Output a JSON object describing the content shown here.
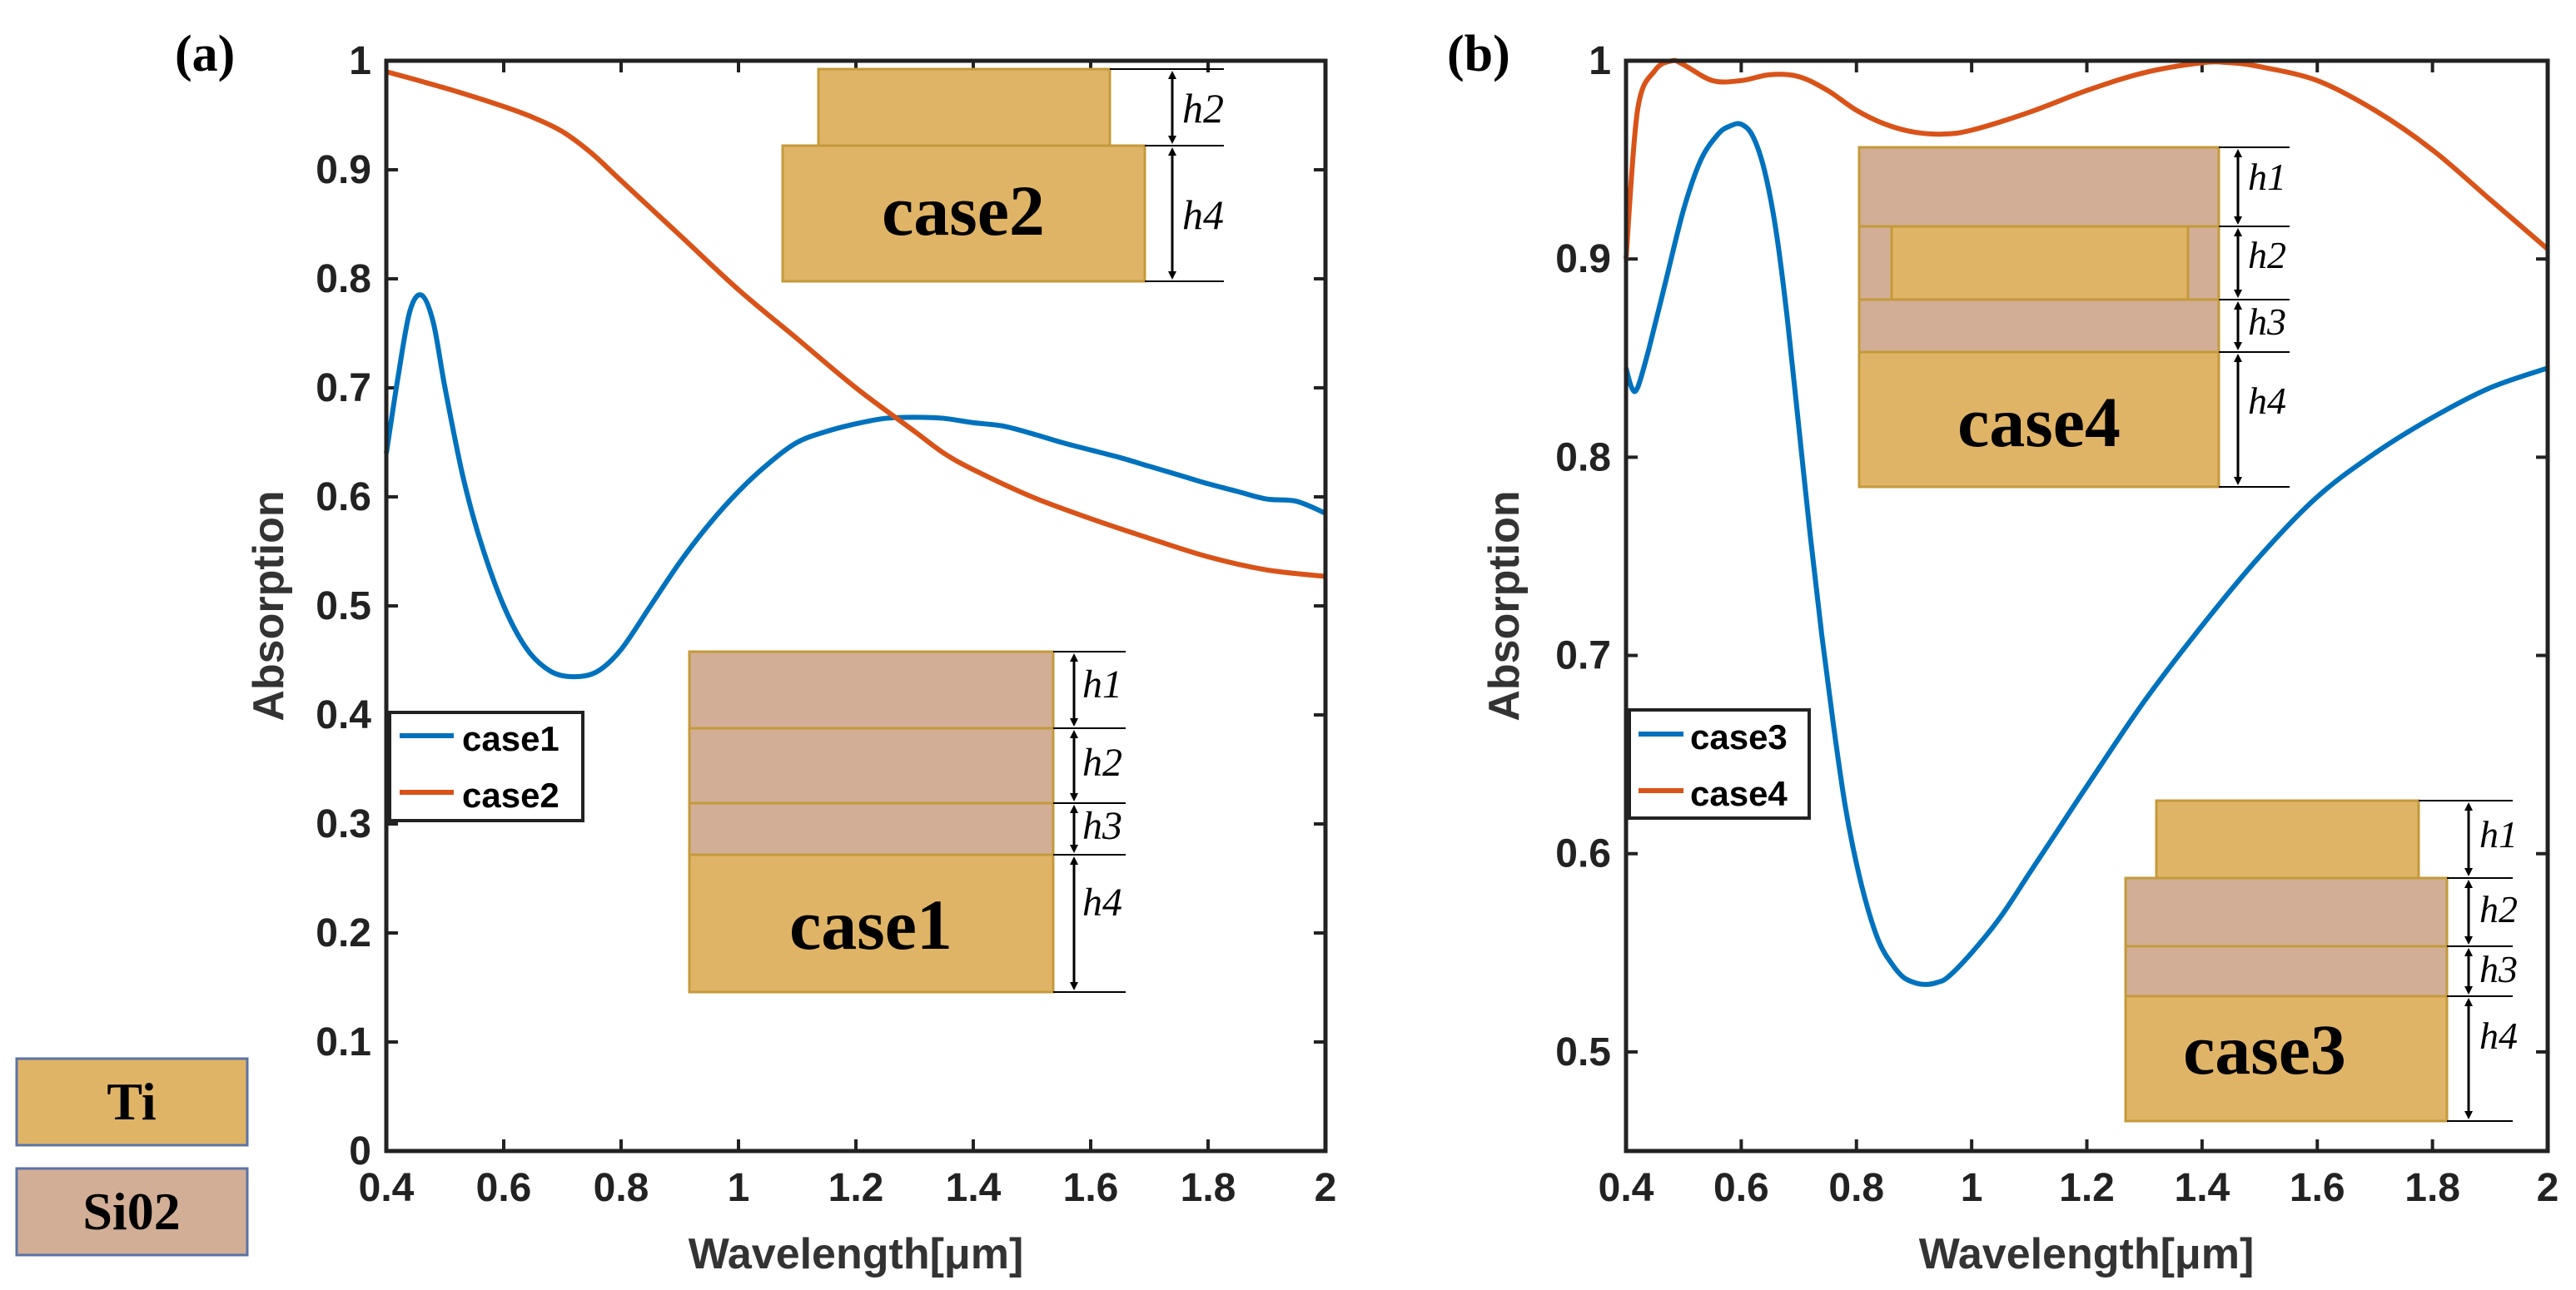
{
  "colors": {
    "case1": "#0072BD",
    "case2": "#D95319",
    "case3": "#0072BD",
    "case4": "#D95319",
    "ti": "#E0B466",
    "sio2": "#D2AE96",
    "layer_border": "#C49A3A",
    "legend_border": "#5A73A8"
  },
  "materials_legend": {
    "ti": "Ti",
    "sio2": "Si02"
  },
  "chart_data": [
    {
      "type": "line",
      "panel_label": "(a)",
      "xlabel": "Wavelength[μm]",
      "ylabel": "Absorption",
      "xlim": [
        0.4,
        2.0
      ],
      "ylim": [
        0,
        1
      ],
      "xticks": [
        0.4,
        0.6,
        0.8,
        1.0,
        1.2,
        1.4,
        1.6,
        1.8,
        2.0
      ],
      "xtick_labels": [
        "0.4",
        "0.6",
        "0.8",
        "1",
        "1.2",
        "1.4",
        "1.6",
        "1.8",
        "2"
      ],
      "yticks": [
        0,
        0.1,
        0.2,
        0.3,
        0.4,
        0.5,
        0.6,
        0.7,
        0.8,
        0.9,
        1.0
      ],
      "ytick_labels": [
        "0",
        "0.1",
        "0.2",
        "0.3",
        "0.4",
        "0.5",
        "0.6",
        "0.7",
        "0.8",
        "0.9",
        "1"
      ],
      "legend_location": "center-left",
      "series": [
        {
          "name": "case1",
          "x": [
            0.4,
            0.42,
            0.44,
            0.46,
            0.48,
            0.5,
            0.53,
            0.56,
            0.6,
            0.64,
            0.68,
            0.72,
            0.76,
            0.8,
            0.85,
            0.9,
            0.95,
            1.0,
            1.05,
            1.1,
            1.15,
            1.2,
            1.25,
            1.3,
            1.35,
            1.4,
            1.45,
            1.5,
            1.55,
            1.6,
            1.65,
            1.7,
            1.75,
            1.8,
            1.85,
            1.9,
            1.95,
            2.0
          ],
          "y": [
            0.64,
            0.71,
            0.77,
            0.785,
            0.76,
            0.7,
            0.62,
            0.56,
            0.5,
            0.46,
            0.44,
            0.435,
            0.44,
            0.46,
            0.5,
            0.54,
            0.575,
            0.605,
            0.63,
            0.65,
            0.66,
            0.667,
            0.672,
            0.673,
            0.672,
            0.668,
            0.665,
            0.658,
            0.65,
            0.643,
            0.636,
            0.628,
            0.62,
            0.612,
            0.605,
            0.598,
            0.596,
            0.585
          ]
        },
        {
          "name": "case2",
          "x": [
            0.4,
            0.5,
            0.6,
            0.65,
            0.7,
            0.75,
            0.8,
            0.9,
            1.0,
            1.1,
            1.2,
            1.3,
            1.35,
            1.4,
            1.5,
            1.6,
            1.7,
            1.8,
            1.9,
            2.0
          ],
          "y": [
            0.99,
            0.975,
            0.958,
            0.948,
            0.935,
            0.915,
            0.89,
            0.84,
            0.79,
            0.745,
            0.7,
            0.66,
            0.64,
            0.625,
            0.6,
            0.58,
            0.562,
            0.545,
            0.533,
            0.527
          ]
        }
      ],
      "inset_top": {
        "name": "case2",
        "label": "case2",
        "dims": [
          "h2",
          "h4"
        ]
      },
      "inset_bottom": {
        "name": "case1",
        "label": "case1",
        "dims": [
          "h1",
          "h2",
          "h3",
          "h4"
        ]
      }
    },
    {
      "type": "line",
      "panel_label": "(b)",
      "xlabel": "Wavelength[μm]",
      "ylabel": "Absorption",
      "xlim": [
        0.4,
        2.0
      ],
      "ylim": [
        0.45,
        1
      ],
      "xticks": [
        0.4,
        0.6,
        0.8,
        1.0,
        1.2,
        1.4,
        1.6,
        1.8,
        2.0
      ],
      "xtick_labels": [
        "0.4",
        "0.6",
        "0.8",
        "1",
        "1.2",
        "1.4",
        "1.6",
        "1.8",
        "2"
      ],
      "yticks": [
        0.5,
        0.6,
        0.7,
        0.8,
        0.9,
        1.0
      ],
      "ytick_labels": [
        "0.5",
        "0.6",
        "0.7",
        "0.8",
        "0.9",
        "1"
      ],
      "legend_location": "lower-left",
      "series": [
        {
          "name": "case3",
          "x": [
            0.4,
            0.41,
            0.42,
            0.44,
            0.47,
            0.5,
            0.53,
            0.56,
            0.58,
            0.6,
            0.62,
            0.64,
            0.66,
            0.68,
            0.7,
            0.72,
            0.74,
            0.76,
            0.78,
            0.8,
            0.82,
            0.84,
            0.86,
            0.88,
            0.9,
            0.92,
            0.94,
            0.96,
            1.0,
            1.05,
            1.1,
            1.15,
            1.2,
            1.3,
            1.4,
            1.5,
            1.6,
            1.7,
            1.8,
            1.9,
            2.0
          ],
          "y": [
            0.845,
            0.835,
            0.835,
            0.855,
            0.89,
            0.925,
            0.95,
            0.963,
            0.967,
            0.968,
            0.962,
            0.945,
            0.915,
            0.87,
            0.815,
            0.76,
            0.71,
            0.665,
            0.625,
            0.595,
            0.572,
            0.555,
            0.545,
            0.538,
            0.535,
            0.534,
            0.535,
            0.538,
            0.55,
            0.568,
            0.59,
            0.612,
            0.634,
            0.677,
            0.715,
            0.75,
            0.78,
            0.802,
            0.82,
            0.835,
            0.845
          ]
        },
        {
          "name": "case4",
          "x": [
            0.4,
            0.42,
            0.45,
            0.48,
            0.5,
            0.55,
            0.6,
            0.65,
            0.7,
            0.75,
            0.8,
            0.85,
            0.9,
            0.95,
            1.0,
            1.1,
            1.2,
            1.3,
            1.4,
            1.45,
            1.5,
            1.6,
            1.7,
            1.8,
            1.9,
            2.0
          ],
          "y": [
            0.9,
            0.975,
            0.995,
            1.0,
            0.998,
            0.99,
            0.99,
            0.993,
            0.992,
            0.985,
            0.975,
            0.968,
            0.964,
            0.963,
            0.965,
            0.974,
            0.985,
            0.994,
            0.999,
            0.999,
            0.997,
            0.99,
            0.975,
            0.955,
            0.93,
            0.905
          ]
        }
      ],
      "inset_top": {
        "name": "case4",
        "label": "case4",
        "dims": [
          "h1",
          "h2",
          "h3",
          "h4"
        ]
      },
      "inset_bottom": {
        "name": "case3",
        "label": "case3",
        "dims": [
          "h1",
          "h2",
          "h3",
          "h4"
        ]
      }
    }
  ]
}
